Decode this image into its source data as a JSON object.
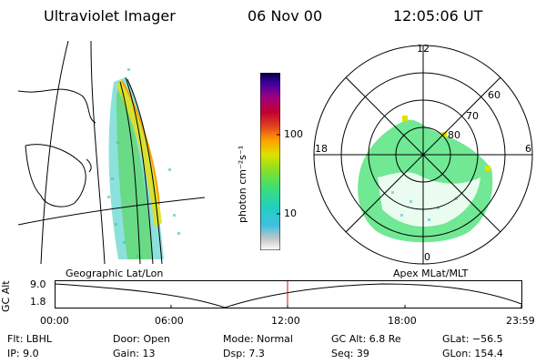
{
  "header": {
    "instrument": "Ultraviolet Imager",
    "date": "06 Nov 00",
    "time": "12:05:06 UT"
  },
  "geo_panel": {
    "caption": "Geographic Lat/Lon"
  },
  "colorbar": {
    "label": "photon cm⁻²s⁻¹",
    "ticks": [
      {
        "value": 100,
        "label": "100"
      },
      {
        "value": 10,
        "label": "10"
      }
    ],
    "scale": "log",
    "colors": [
      "#ffffff",
      "#c8c8c8",
      "#40c0e0",
      "#20d0c0",
      "#40e070",
      "#90e020",
      "#e0e000",
      "#ffa000",
      "#e04020",
      "#c00030",
      "#a00080",
      "#4000a0",
      "#000040"
    ]
  },
  "polar_panel": {
    "caption": "Apex MLat/MLT",
    "mlt_labels": {
      "top": "12",
      "left": "18",
      "right": "6",
      "bottom": "0"
    },
    "lat_labels": [
      "60",
      "70",
      "80"
    ]
  },
  "altitude_plot": {
    "ylabel": "GC Alt",
    "y_ticks": [
      "9.0",
      "1.8"
    ],
    "x_ticks": [
      "00:00",
      "06:00",
      "12:00",
      "18:00",
      "23:59"
    ],
    "marker_time": "12:05",
    "marker_color": "#d01010"
  },
  "info": {
    "filter": "Flt: LBHL",
    "ip": "IP:  9.0",
    "door": "Door: Open",
    "gain": "Gain: 13",
    "mode": "Mode: Normal",
    "dsp": "Dsp:     7.3",
    "gc_alt": "GC Alt: 6.8 Re",
    "seq": "Seq: 39",
    "glat": "GLat: −56.5",
    "glon": "GLon: 154.4"
  }
}
